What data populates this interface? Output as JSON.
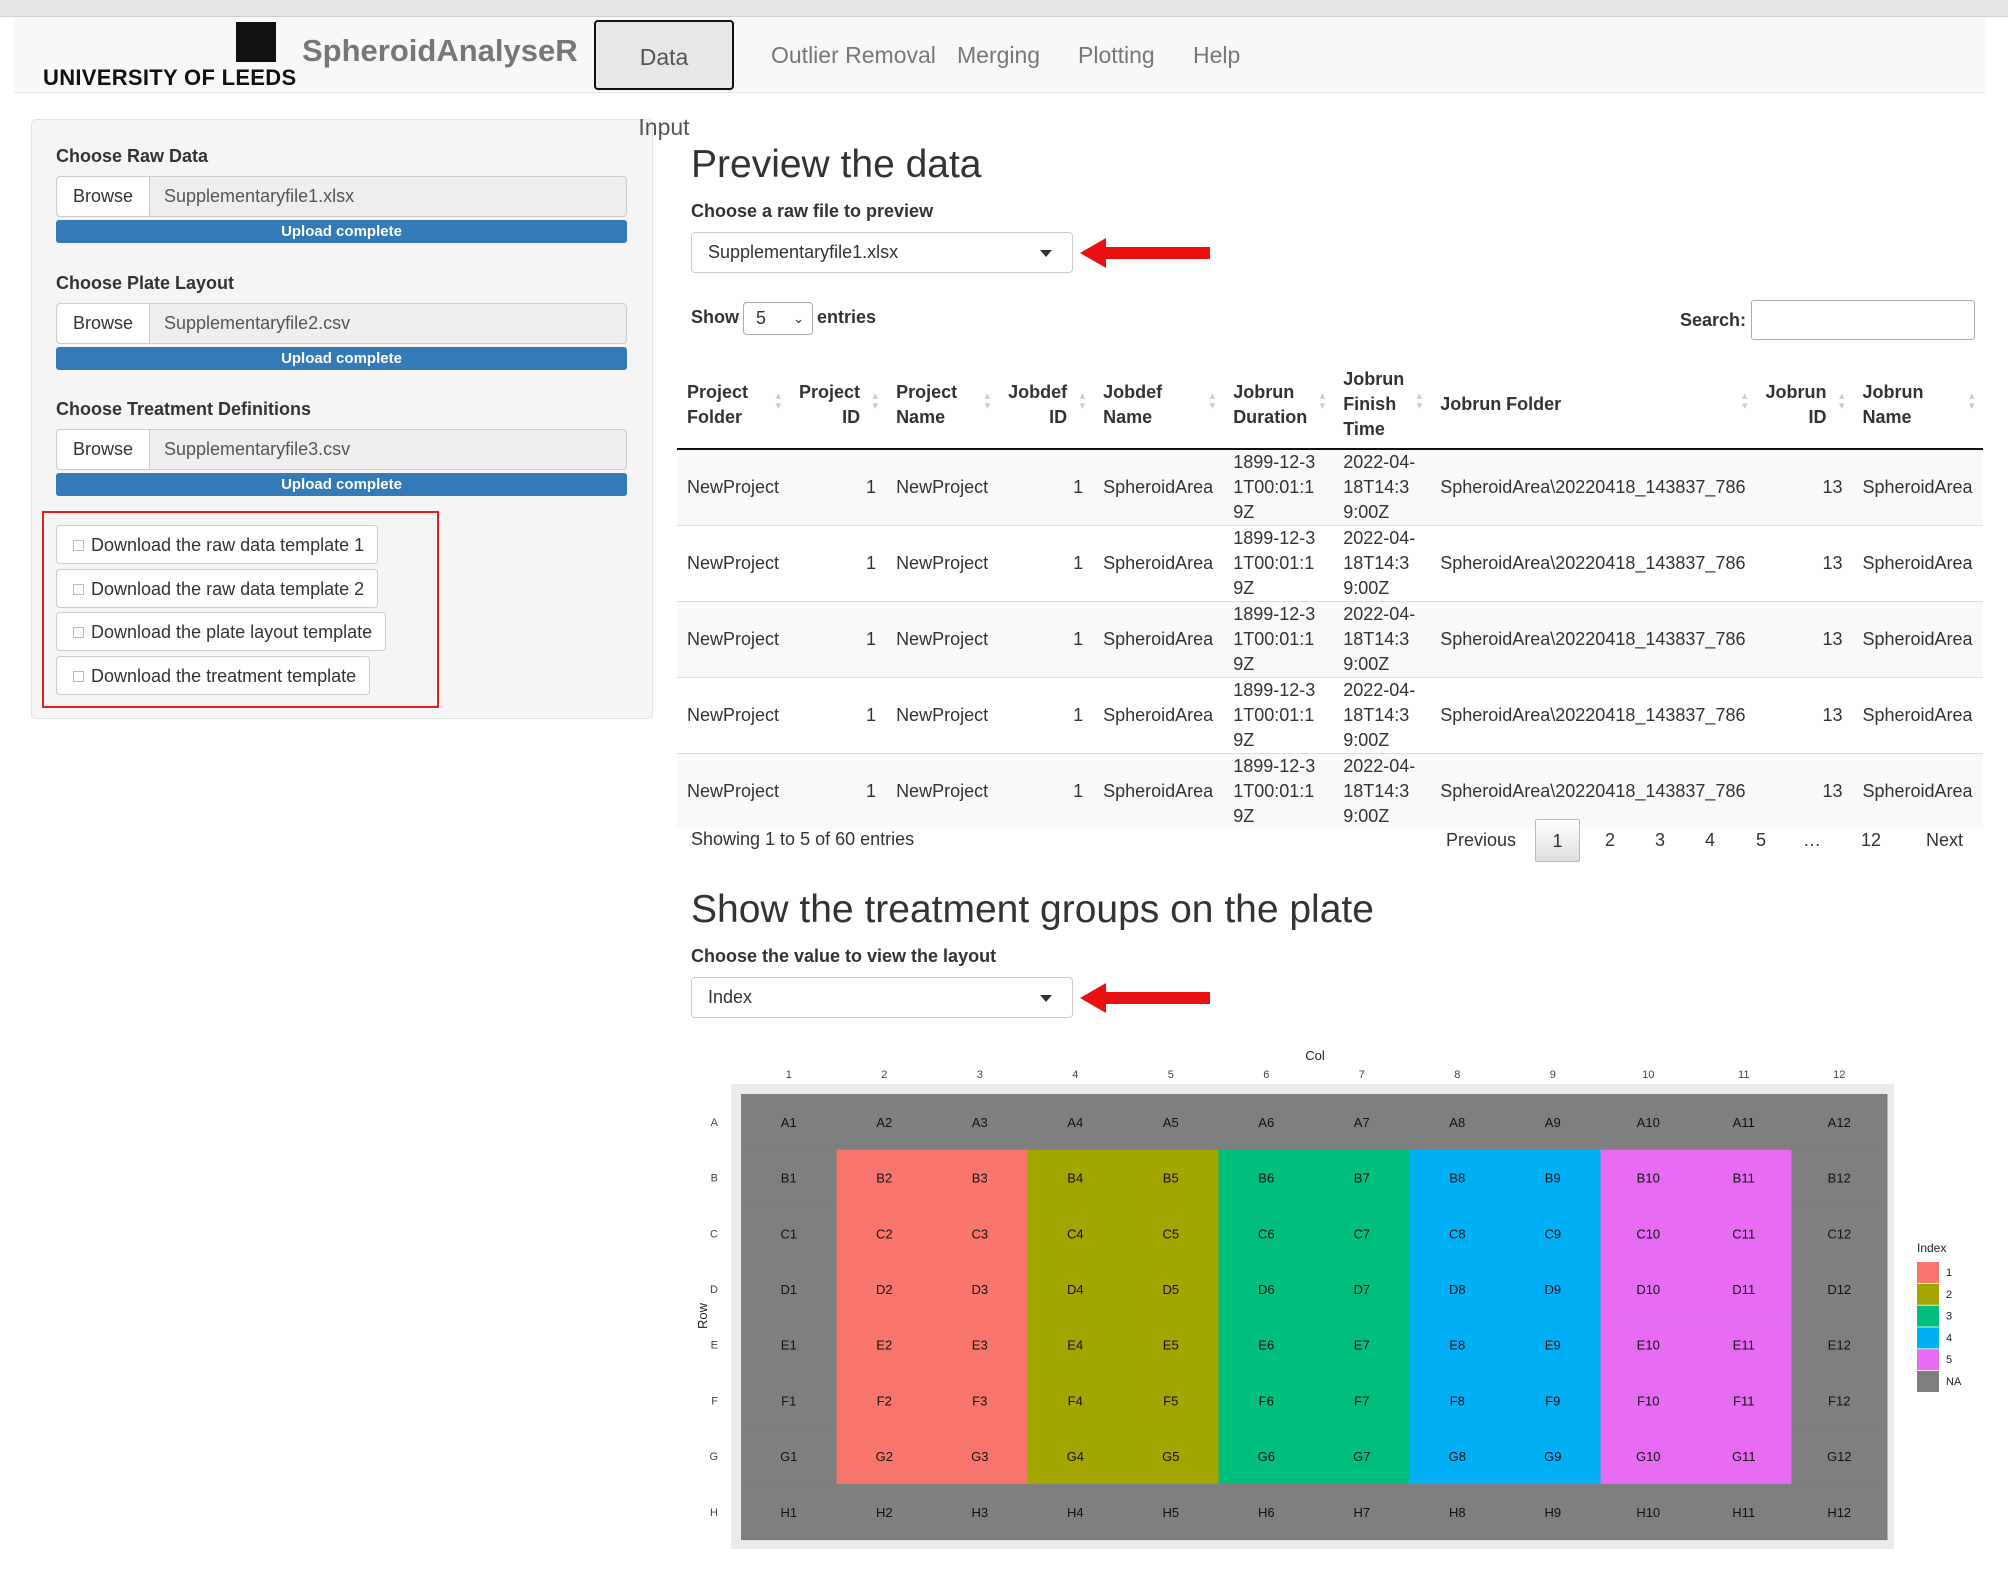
{
  "header": {
    "logo_text": "UNIVERSITY OF LEEDS",
    "app_title": "SpheroidAnalyseR",
    "tabs": [
      "Data Input",
      "Outlier Removal",
      "Merging",
      "Plotting",
      "Help"
    ]
  },
  "sidebar": {
    "inputs": [
      {
        "label": "Choose Raw Data",
        "button": "Browse",
        "file": "Supplementaryfile1.xlsx",
        "status": "Upload complete"
      },
      {
        "label": "Choose Plate Layout",
        "button": "Browse",
        "file": "Supplementaryfile2.csv",
        "status": "Upload complete"
      },
      {
        "label": "Choose Treatment Definitions",
        "button": "Browse",
        "file": "Supplementaryfile3.csv",
        "status": "Upload complete"
      }
    ],
    "downloads": [
      "Download the raw data template 1",
      "Download the raw data template 2",
      "Download the plate layout template",
      "Download the treatment template"
    ]
  },
  "preview": {
    "title": "Preview the data",
    "select_label": "Choose a raw file to preview",
    "select_value": "Supplementaryfile1.xlsx",
    "show": "Show",
    "length": "5",
    "entries": "entries",
    "search": "Search:",
    "columns": [
      "Project Folder",
      "Project ID",
      "Project Name",
      "Jobdef ID",
      "Jobdef Name",
      "Jobrun Duration",
      "Jobrun Finish Time",
      "Jobrun Folder",
      "Jobrun ID",
      "Jobrun Name"
    ],
    "rows": [
      [
        "NewProject",
        1,
        "NewProject",
        1,
        "SpheroidArea",
        "1899-12-31T00:01:19Z",
        "2022-04-18T14:39:00Z",
        "SpheroidArea\\20220418_143837_786",
        13,
        "SpheroidArea"
      ],
      [
        "NewProject",
        1,
        "NewProject",
        1,
        "SpheroidArea",
        "1899-12-31T00:01:19Z",
        "2022-04-18T14:39:00Z",
        "SpheroidArea\\20220418_143837_786",
        13,
        "SpheroidArea"
      ],
      [
        "NewProject",
        1,
        "NewProject",
        1,
        "SpheroidArea",
        "1899-12-31T00:01:19Z",
        "2022-04-18T14:39:00Z",
        "SpheroidArea\\20220418_143837_786",
        13,
        "SpheroidArea"
      ],
      [
        "NewProject",
        1,
        "NewProject",
        1,
        "SpheroidArea",
        "1899-12-31T00:01:19Z",
        "2022-04-18T14:39:00Z",
        "SpheroidArea\\20220418_143837_786",
        13,
        "SpheroidArea"
      ],
      [
        "NewProject",
        1,
        "NewProject",
        1,
        "SpheroidArea",
        "1899-12-31T00:01:19Z",
        "2022-04-18T14:39:00Z",
        "SpheroidArea\\20220418_143837_786",
        13,
        "SpheroidArea"
      ]
    ],
    "info": "Showing 1 to 5 of 60 entries",
    "pages": [
      "Previous",
      "1",
      "2",
      "3",
      "4",
      "5",
      "…",
      "12",
      "Next"
    ],
    "current_page": 1
  },
  "plate": {
    "title": "Show the treatment groups on the plate",
    "select_label": "Choose the value to view the layout",
    "select_value": "Index",
    "plot": {
      "x_title": "Col",
      "y_title": "Row",
      "cols": [
        1,
        2,
        3,
        4,
        5,
        6,
        7,
        8,
        9,
        10,
        11,
        12
      ],
      "rows": [
        "A",
        "B",
        "C",
        "D",
        "E",
        "F",
        "G",
        "H"
      ],
      "labels": [
        [
          "A1",
          "A2",
          "A3",
          "A4",
          "A5",
          "A6",
          "A7",
          "A8",
          "A9",
          "A10",
          "A11",
          "A12"
        ],
        [
          "B1",
          "B2",
          "B3",
          "B4",
          "B5",
          "B6",
          "B7",
          "B8",
          "B9",
          "B10",
          "B11",
          "B12"
        ],
        [
          "C1",
          "C2",
          "C3",
          "C4",
          "C5",
          "C6",
          "C7",
          "C8",
          "C9",
          "C10",
          "C11",
          "C12"
        ],
        [
          "D1",
          "D2",
          "D3",
          "D4",
          "D5",
          "D6",
          "D7",
          "D8",
          "D9",
          "D10",
          "D11",
          "D12"
        ],
        [
          "E1",
          "E2",
          "E3",
          "E4",
          "E5",
          "E6",
          "E7",
          "E8",
          "E9",
          "E10",
          "E11",
          "E12"
        ],
        [
          "F1",
          "F2",
          "F3",
          "F4",
          "F5",
          "F6",
          "F7",
          "F8",
          "F9",
          "F10",
          "F11",
          "F12"
        ],
        [
          "G1",
          "G2",
          "G3",
          "G4",
          "G5",
          "G6",
          "G7",
          "G8",
          "G9",
          "G10",
          "G11",
          "G12"
        ],
        [
          "H1",
          "H2",
          "H3",
          "H4",
          "H5",
          "H6",
          "H7",
          "H8",
          "H9",
          "H10",
          "H11",
          "H12"
        ]
      ],
      "values": [
        [
          null,
          null,
          null,
          null,
          null,
          null,
          null,
          null,
          null,
          null,
          null,
          null
        ],
        [
          null,
          1,
          1,
          2,
          2,
          3,
          3,
          4,
          4,
          5,
          5,
          null
        ],
        [
          null,
          1,
          1,
          2,
          2,
          3,
          3,
          4,
          4,
          5,
          5,
          null
        ],
        [
          null,
          1,
          1,
          2,
          2,
          3,
          3,
          4,
          4,
          5,
          5,
          null
        ],
        [
          null,
          1,
          1,
          2,
          2,
          3,
          3,
          4,
          4,
          5,
          5,
          null
        ],
        [
          null,
          1,
          1,
          2,
          2,
          3,
          3,
          4,
          4,
          5,
          5,
          null
        ],
        [
          null,
          1,
          1,
          2,
          2,
          3,
          3,
          4,
          4,
          5,
          5,
          null
        ],
        [
          null,
          null,
          null,
          null,
          null,
          null,
          null,
          null,
          null,
          null,
          null,
          null
        ]
      ],
      "legend_title": "Index",
      "legend": [
        {
          "label": "1",
          "value": 1,
          "color": "#F8766D"
        },
        {
          "label": "2",
          "value": 2,
          "color": "#A3A500"
        },
        {
          "label": "3",
          "value": 3,
          "color": "#00BF7D"
        },
        {
          "label": "4",
          "value": 4,
          "color": "#00B0F6"
        },
        {
          "label": "5",
          "value": 5,
          "color": "#E76BF3"
        },
        {
          "label": "NA",
          "value": null,
          "color": "#7F7F7F"
        }
      ]
    }
  }
}
